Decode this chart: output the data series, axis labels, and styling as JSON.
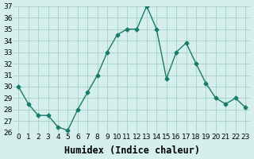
{
  "x": [
    0,
    1,
    2,
    3,
    4,
    5,
    6,
    7,
    8,
    9,
    10,
    11,
    12,
    13,
    14,
    15,
    16,
    17,
    18,
    19,
    20,
    21,
    22,
    23
  ],
  "y": [
    30,
    28.5,
    27.5,
    27.5,
    26.5,
    26.2,
    28,
    29.5,
    31,
    33,
    34.5,
    35,
    35,
    37,
    35,
    30.7,
    33,
    33.8,
    32,
    30.3,
    29,
    28.5,
    29,
    28.2
  ],
  "xlabel": "Humidex (Indice chaleur)",
  "ylim": [
    26,
    37
  ],
  "xlim_min": -0.5,
  "xlim_max": 23.5,
  "yticks": [
    26,
    27,
    28,
    29,
    30,
    31,
    32,
    33,
    34,
    35,
    36,
    37
  ],
  "xticks": [
    0,
    1,
    2,
    3,
    4,
    5,
    6,
    7,
    8,
    9,
    10,
    11,
    12,
    13,
    14,
    15,
    16,
    17,
    18,
    19,
    20,
    21,
    22,
    23
  ],
  "xtick_labels": [
    "0",
    "1",
    "2",
    "3",
    "4",
    "5",
    "6",
    "7",
    "8",
    "9",
    "10",
    "11",
    "12",
    "13",
    "14",
    "15",
    "16",
    "17",
    "18",
    "19",
    "20",
    "21",
    "22",
    "23"
  ],
  "line_color": "#1a7a6a",
  "marker": "D",
  "marker_size": 2.5,
  "bg_color": "#d4efec",
  "grid_color": "#aad4cc",
  "tick_fontsize": 6.5,
  "xlabel_fontsize": 8.5
}
